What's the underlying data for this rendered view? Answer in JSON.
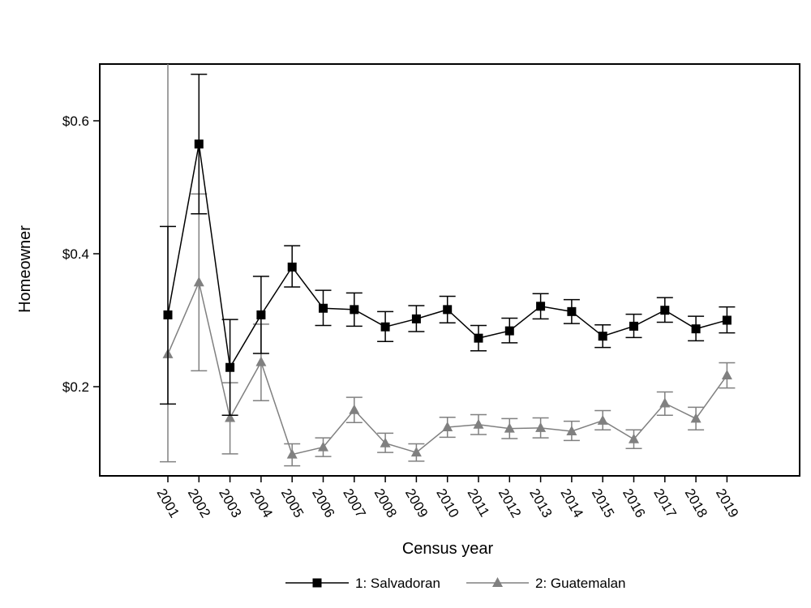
{
  "chart_data": {
    "type": "line",
    "title": "",
    "xlabel": "Census year",
    "ylabel": "Homeowner",
    "categories": [
      "2001",
      "2002",
      "2003",
      "2004",
      "2005",
      "2006",
      "2007",
      "2008",
      "2009",
      "2010",
      "2011",
      "2012",
      "2013",
      "2014",
      "2015",
      "2016",
      "2017",
      "2018",
      "2019"
    ],
    "y_ticks": [
      0.2,
      0.4,
      0.6
    ],
    "y_tick_labels": [
      "$0.2",
      "$0.4",
      "$0.6"
    ],
    "ylim": [
      0.062,
      0.68
    ],
    "grid": false,
    "legend_position": "bottom",
    "series": [
      {
        "name": "1: Salvadoran",
        "color": "#000000",
        "marker": "square",
        "values": [
          0.308,
          0.565,
          0.229,
          0.308,
          0.38,
          0.318,
          0.316,
          0.29,
          0.302,
          0.316,
          0.273,
          0.284,
          0.321,
          0.313,
          0.276,
          0.291,
          0.315,
          0.287,
          0.3
        ],
        "ci_low": [
          0.174,
          0.46,
          0.157,
          0.25,
          0.35,
          0.292,
          0.291,
          0.268,
          0.283,
          0.296,
          0.254,
          0.266,
          0.302,
          0.295,
          0.259,
          0.274,
          0.297,
          0.269,
          0.281
        ],
        "ci_high": [
          0.441,
          0.67,
          0.301,
          0.366,
          0.412,
          0.345,
          0.341,
          0.313,
          0.322,
          0.336,
          0.292,
          0.303,
          0.34,
          0.331,
          0.293,
          0.309,
          0.334,
          0.306,
          0.32
        ]
      },
      {
        "name": "2: Guatemalan",
        "color": "#808080",
        "marker": "triangle",
        "values": [
          0.249,
          0.357,
          0.153,
          0.237,
          0.098,
          0.109,
          0.165,
          0.115,
          0.101,
          0.139,
          0.143,
          0.137,
          0.138,
          0.133,
          0.149,
          0.121,
          0.175,
          0.152,
          0.217
        ],
        "ci_low": [
          0.087,
          0.224,
          0.099,
          0.179,
          0.081,
          0.095,
          0.146,
          0.101,
          0.088,
          0.124,
          0.128,
          0.122,
          0.123,
          0.119,
          0.135,
          0.107,
          0.157,
          0.135,
          0.198
        ],
        "ci_high": [
          0.7,
          0.49,
          0.206,
          0.294,
          0.114,
          0.123,
          0.184,
          0.13,
          0.114,
          0.154,
          0.158,
          0.152,
          0.153,
          0.148,
          0.164,
          0.135,
          0.192,
          0.169,
          0.236
        ]
      }
    ]
  }
}
